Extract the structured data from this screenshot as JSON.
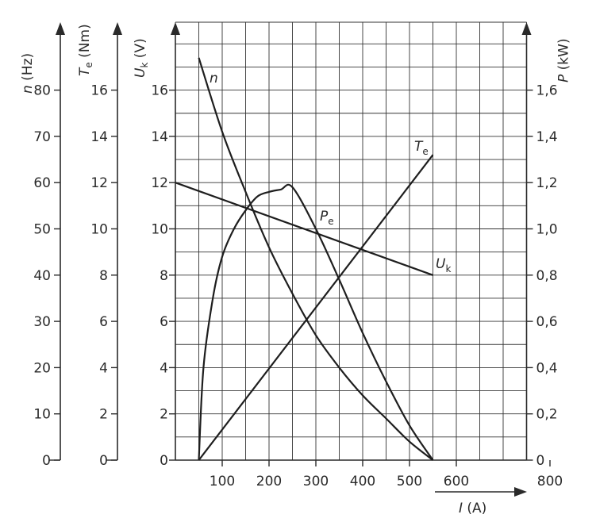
{
  "chart_data": {
    "type": "line",
    "x_axis": {
      "label_var": "I",
      "label_unit": "(A)",
      "ticks": [
        100,
        200,
        300,
        400,
        500,
        600,
        800
      ],
      "range": [
        0,
        750
      ],
      "grid": true
    },
    "y_axes": {
      "n": {
        "label_var": "n",
        "label_unit": "(Hz)",
        "ticks": [
          "0",
          "10",
          "20",
          "30",
          "40",
          "50",
          "60",
          "70",
          "80"
        ],
        "range": [
          0,
          80
        ]
      },
      "Te": {
        "label_var": "T",
        "label_sub": "e",
        "label_unit": "(Nm)",
        "ticks": [
          "0",
          "2",
          "4",
          "6",
          "8",
          "10",
          "12",
          "14",
          "16"
        ],
        "range": [
          0,
          16
        ]
      },
      "Uk": {
        "label_var": "U",
        "label_sub": "k",
        "label_unit": "(V)",
        "ticks": [
          "0",
          "2",
          "4",
          "6",
          "8",
          "10",
          "12",
          "14",
          "16"
        ],
        "range": [
          0,
          16
        ]
      },
      "P": {
        "label_var": "P",
        "label_unit": "(kW)",
        "ticks": [
          "0",
          "0,2",
          "0,4",
          "0,6",
          "0,8",
          "1,0",
          "1,2",
          "1,4",
          "1,6"
        ],
        "range": [
          0,
          1.6
        ]
      }
    },
    "series": [
      {
        "name": "n",
        "sub": "",
        "axis": "n",
        "x": [
          50,
          100,
          150,
          200,
          250,
          300,
          350,
          400,
          450,
          500,
          550
        ],
        "y": [
          87,
          71,
          58,
          46,
          36,
          27,
          20,
          14,
          9,
          4,
          0
        ]
      },
      {
        "name": "P",
        "sub": "e",
        "axis": "P",
        "x": [
          50,
          60,
          80,
          100,
          125,
          150,
          175,
          200,
          225,
          250,
          300,
          350,
          400,
          450,
          500,
          550
        ],
        "y": [
          0,
          0.4,
          0.7,
          0.88,
          1.0,
          1.08,
          1.14,
          1.16,
          1.17,
          1.18,
          1.0,
          0.78,
          0.55,
          0.34,
          0.15,
          0
        ]
      },
      {
        "name": "T",
        "sub": "e",
        "axis": "Te",
        "x": [
          50,
          550
        ],
        "y": [
          0,
          13.2
        ]
      },
      {
        "name": "U",
        "sub": "k",
        "axis": "Uk",
        "x": [
          0,
          550
        ],
        "y": [
          12,
          8
        ]
      }
    ]
  }
}
